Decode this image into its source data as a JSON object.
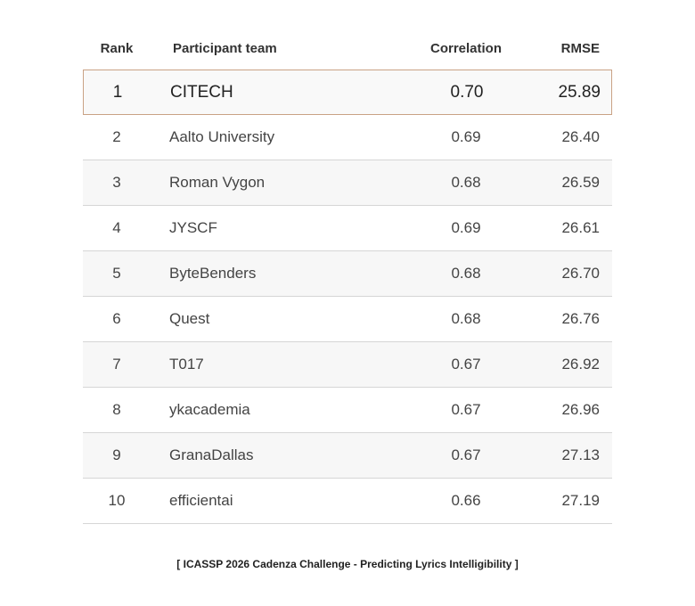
{
  "table": {
    "header": [
      "Rank",
      "Participant team",
      "Correlation",
      "RMSE"
    ],
    "rows": [
      [
        "1",
        "CITECH",
        "0.70",
        "25.89"
      ],
      [
        "2",
        "Aalto University",
        "0.69",
        "26.40"
      ],
      [
        "3",
        "Roman Vygon",
        "0.68",
        "26.59"
      ],
      [
        "4",
        "JYSCF",
        "0.69",
        "26.61"
      ],
      [
        "5",
        "ByteBenders",
        "0.68",
        "26.70"
      ],
      [
        "6",
        "Quest",
        "0.68",
        "26.76"
      ],
      [
        "7",
        "T017",
        "0.67",
        "26.92"
      ],
      [
        "8",
        "ykacademia",
        "0.67",
        "26.96"
      ],
      [
        "9",
        "GranaDallas",
        "0.67",
        "27.13"
      ],
      [
        "10",
        "efficientai",
        "0.66",
        "27.19"
      ]
    ]
  },
  "caption": "[ ICASSP 2026 Cadenza Challenge - Predicting Lyrics Intelligibility ]"
}
